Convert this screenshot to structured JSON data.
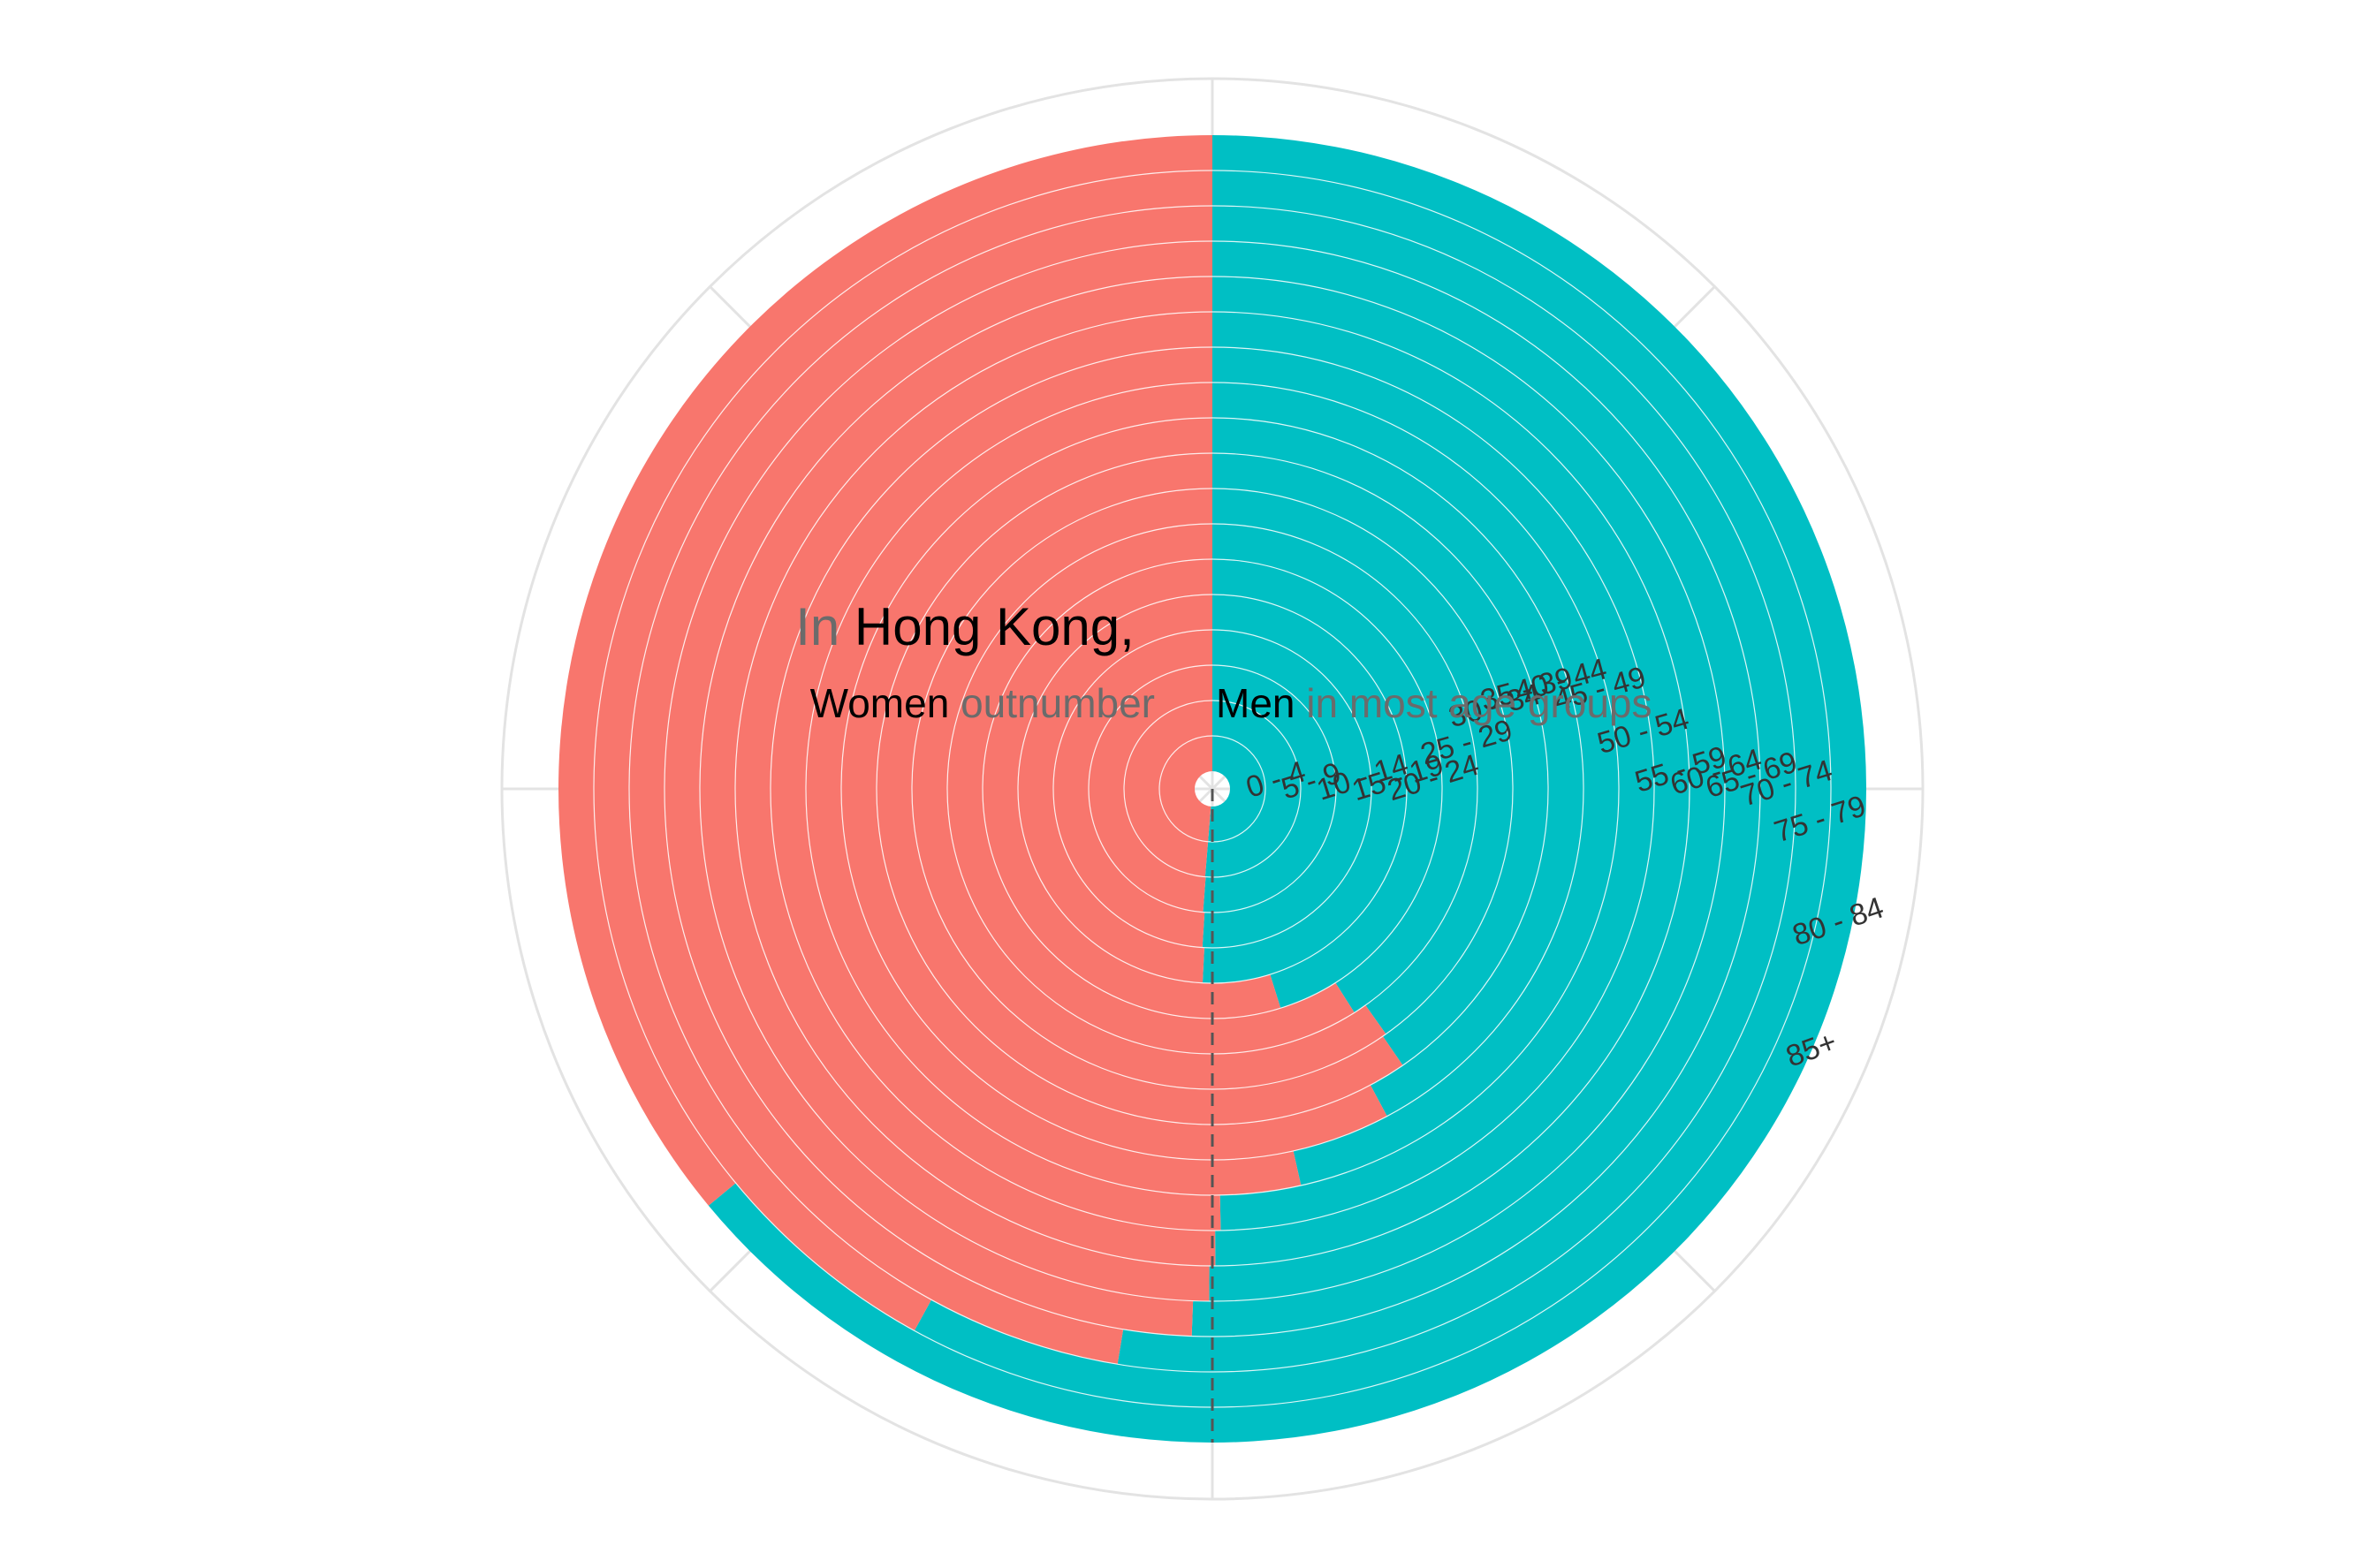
{
  "chart_data": {
    "type": "bar",
    "coord": "polar",
    "title": {
      "line1": [
        {
          "text": "In ",
          "style": "gray"
        },
        {
          "text": "Hong Kong,",
          "style": "dark"
        }
      ],
      "line2_left": [
        {
          "text": "Women ",
          "style": "dark"
        },
        {
          "text": "outnumber",
          "style": "gray"
        }
      ],
      "line2_right": [
        {
          "text": "Men",
          "style": "dark"
        },
        {
          "text": " in most age groups",
          "style": "gray"
        }
      ]
    },
    "categories": [
      "0 - 4",
      "5 - 9",
      "10 - 14",
      "15 - 19",
      "20 - 24",
      "25 - 29",
      "30 - 34",
      "35 - 39",
      "40 - 44",
      "45 - 49",
      "50 - 54",
      "55 - 59",
      "60 - 64",
      "65 - 69",
      "70 - 74",
      "75 - 79",
      "80 - 84",
      "85+"
    ],
    "series": [
      {
        "name": "Women",
        "color": "#F8766D",
        "values": [
          0.487,
          0.487,
          0.488,
          0.49,
          0.492,
          0.548,
          0.59,
          0.598,
          0.596,
          0.578,
          0.535,
          0.503,
          0.501,
          0.499,
          0.494,
          0.474,
          0.42,
          0.36
        ]
      },
      {
        "name": "Men",
        "color": "#00BFC4",
        "values": [
          0.513,
          0.513,
          0.512,
          0.51,
          0.508,
          0.452,
          0.41,
          0.402,
          0.404,
          0.422,
          0.465,
          0.497,
          0.499,
          0.501,
          0.506,
          0.526,
          0.58,
          0.64
        ]
      }
    ],
    "ylim": [
      0,
      1
    ],
    "grid": true,
    "reference_line": "dashed at 0.5",
    "legend": "none",
    "colors": {
      "women": "#F8766D",
      "men": "#00BFC4",
      "grid": "#e3e3e3",
      "ring_separator": "#ffffff",
      "dashed_line": "#555555"
    }
  }
}
